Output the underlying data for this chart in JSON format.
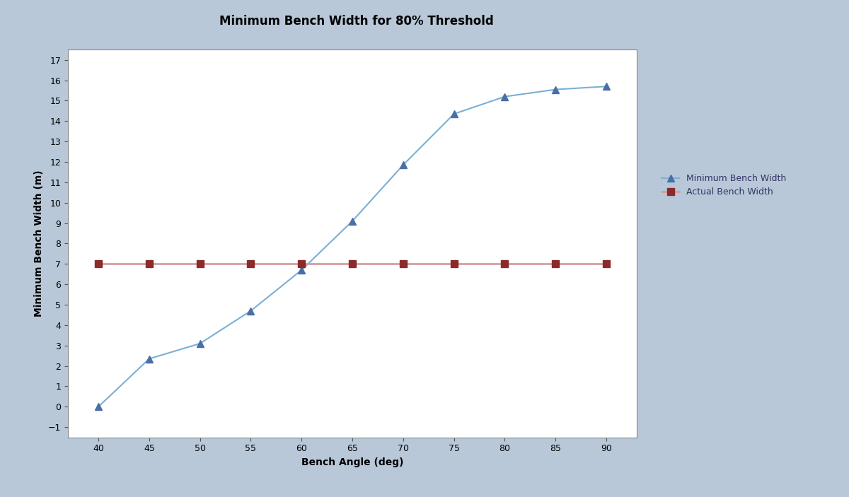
{
  "title": "Minimum Bench Width for 80% Threshold",
  "xlabel": "Bench Angle (deg)",
  "ylabel": "Minimum Bench Width (m)",
  "bench_angles": [
    40,
    45,
    50,
    55,
    60,
    65,
    70,
    75,
    80,
    85,
    90
  ],
  "min_bench_width": [
    0.0,
    2.35,
    3.1,
    4.7,
    6.7,
    9.1,
    11.85,
    14.35,
    15.2,
    15.55,
    15.7
  ],
  "actual_bench_width": [
    7.0,
    7.0,
    7.0,
    7.0,
    7.0,
    7.0,
    7.0,
    7.0,
    7.0,
    7.0,
    7.0
  ],
  "line1_color": "#7bafd4",
  "line1_marker_color": "#4a6fa5",
  "line2_color": "#d4a0a0",
  "line2_marker_color": "#8b2a2a",
  "background_outer": "#b8c8d8",
  "background_panel": "#b8c8d8",
  "background_inner": "#ffffff",
  "ylim": [
    -1.5,
    17.5
  ],
  "xlim": [
    37,
    93
  ],
  "yticks": [
    -1,
    0,
    1,
    2,
    3,
    4,
    5,
    6,
    7,
    8,
    9,
    10,
    11,
    12,
    13,
    14,
    15,
    16,
    17
  ],
  "xticks": [
    40,
    45,
    50,
    55,
    60,
    65,
    70,
    75,
    80,
    85,
    90
  ],
  "title_fontsize": 12,
  "axis_label_fontsize": 10,
  "tick_fontsize": 9,
  "legend_fontsize": 9
}
